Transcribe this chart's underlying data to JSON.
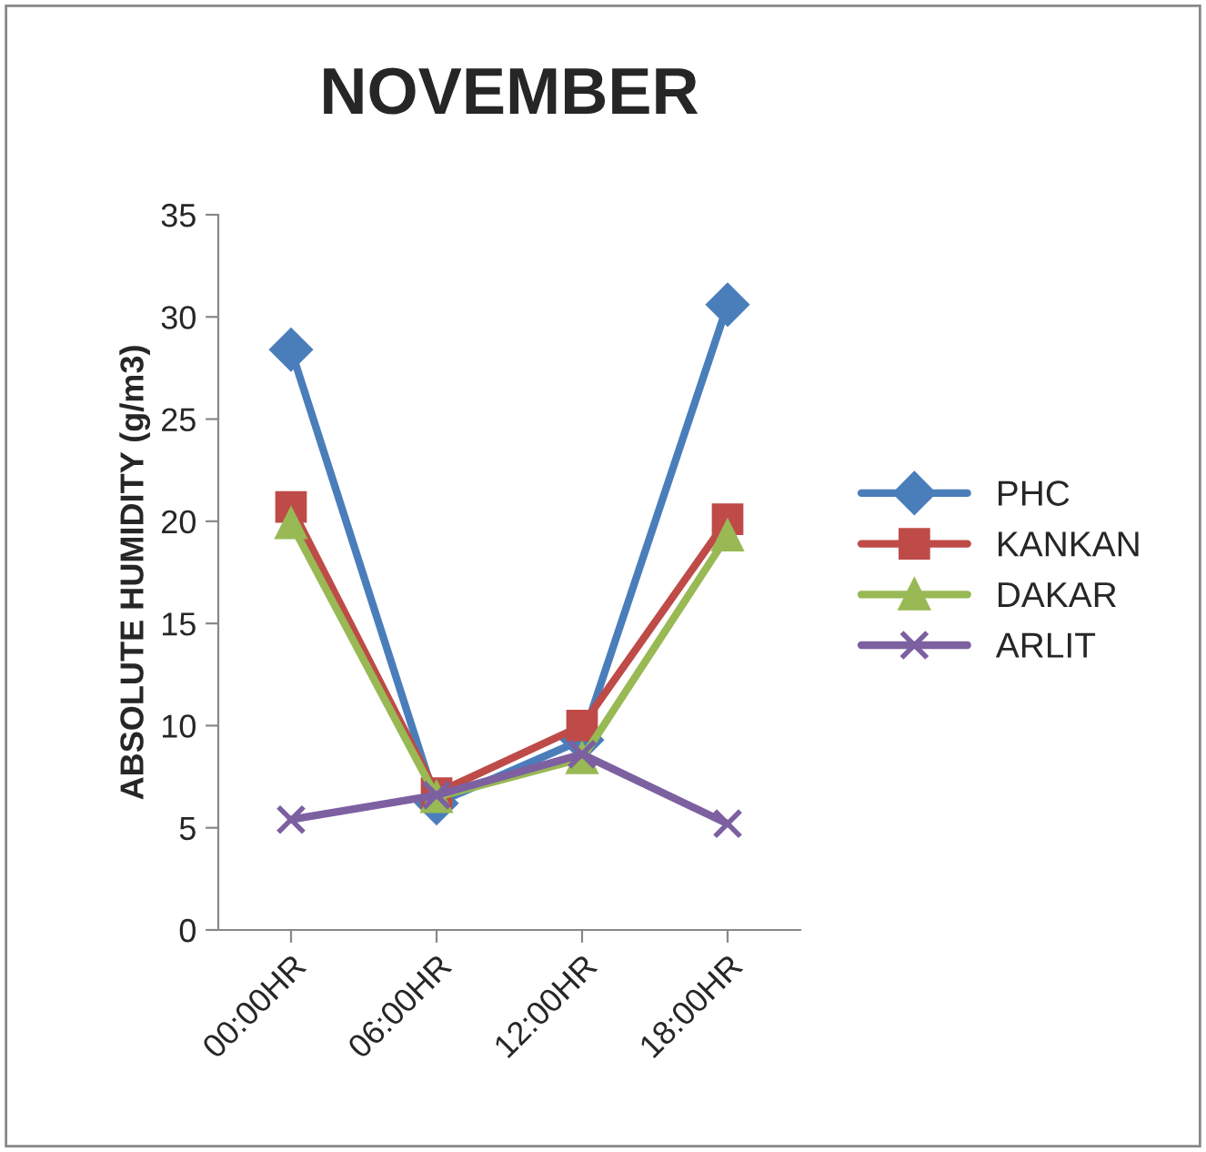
{
  "chart_data": {
    "type": "line",
    "title": "NOVEMBER",
    "ylabel": "ABSOLUTE HUMIDITY (g/m3)",
    "categories": [
      "00:00HR",
      "06:00HR",
      "12:00HR",
      "18:00HR"
    ],
    "series": [
      {
        "name": "PHC",
        "color": "#4a7ebb",
        "marker": "diamond",
        "values": [
          28.4,
          6.2,
          9.3,
          30.6
        ]
      },
      {
        "name": "KANKAN",
        "color": "#be4b48",
        "marker": "square",
        "values": [
          20.7,
          6.7,
          10.0,
          20.1
        ]
      },
      {
        "name": "DAKAR",
        "color": "#98b954",
        "marker": "triangle",
        "values": [
          19.9,
          6.5,
          8.4,
          19.3
        ]
      },
      {
        "name": "ARLIT",
        "color": "#7d60a0",
        "marker": "cross",
        "values": [
          5.4,
          6.6,
          8.6,
          5.2
        ]
      }
    ],
    "ylim": [
      0,
      35
    ],
    "yticks": [
      0,
      5,
      10,
      15,
      20,
      25,
      30,
      35
    ],
    "grid": false,
    "legend": "right"
  }
}
